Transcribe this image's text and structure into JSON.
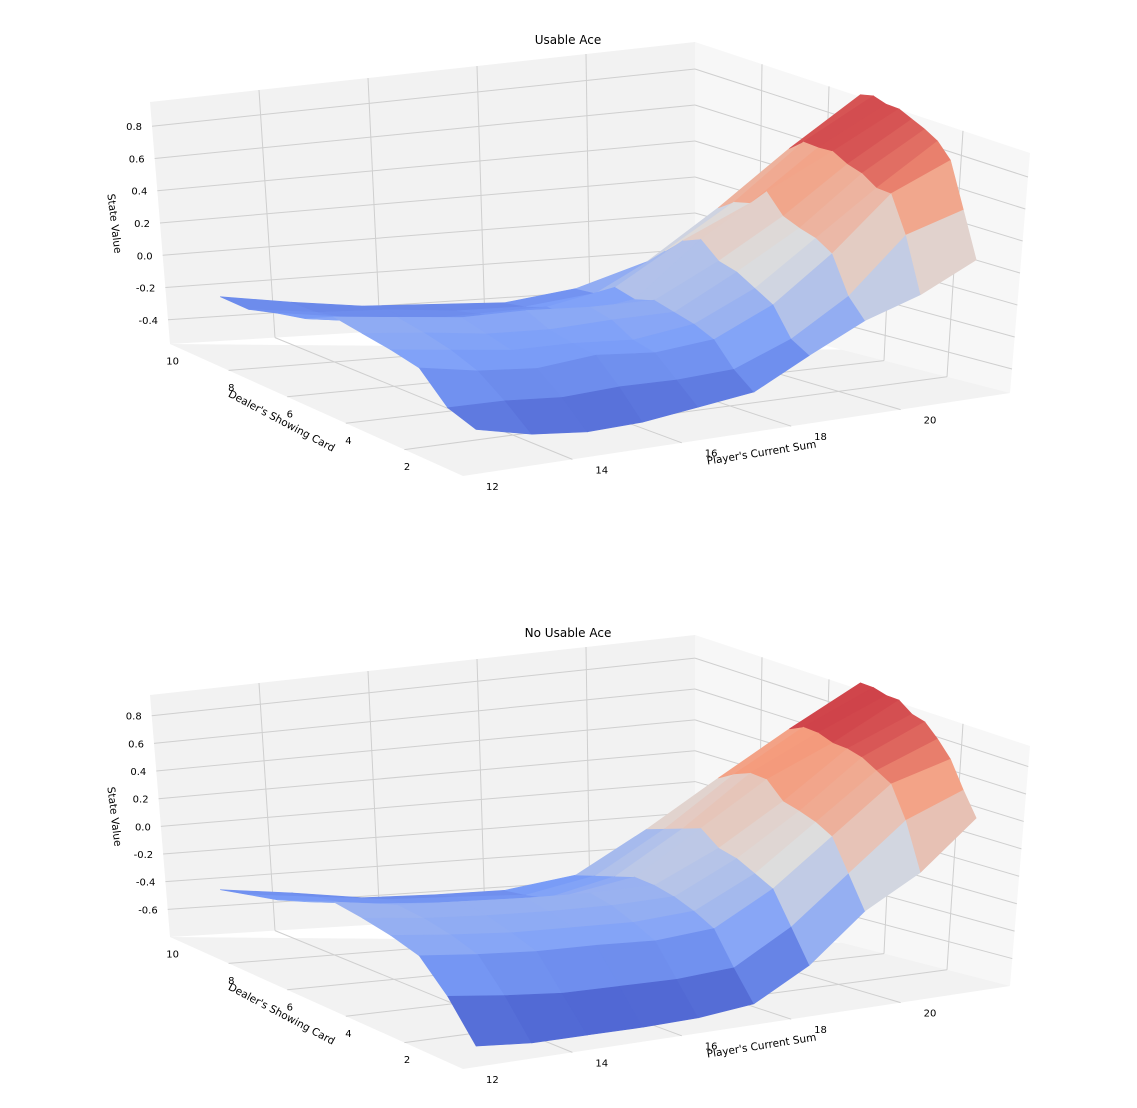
{
  "chart_data": [
    {
      "type": "surface3d",
      "title": "Usable Ace",
      "xlabel": "Player's Current Sum",
      "ylabel": "Dealer's Showing Card",
      "zlabel": "State Value",
      "xticks": [
        "12",
        "14",
        "16",
        "18",
        "20"
      ],
      "yticks": [
        "2",
        "4",
        "6",
        "8",
        "10"
      ],
      "zticks": [
        "-0.4",
        "-0.2",
        "0.0",
        "0.2",
        "0.4",
        "0.6",
        "0.8"
      ],
      "x": [
        12,
        13,
        14,
        15,
        16,
        17,
        18,
        19,
        20,
        21
      ],
      "y": [
        1,
        2,
        3,
        4,
        5,
        6,
        7,
        8,
        9,
        10
      ],
      "zlim": [
        -0.55,
        0.95
      ],
      "colormap": "coolwarm",
      "z": [
        [
          -0.35,
          -0.42,
          -0.45,
          -0.44,
          -0.4,
          -0.36,
          -0.2,
          -0.05,
          0.05,
          0.2
        ],
        [
          -0.3,
          -0.3,
          -0.32,
          -0.3,
          -0.3,
          -0.28,
          -0.15,
          0.05,
          0.35,
          0.45
        ],
        [
          -0.15,
          -0.2,
          -0.22,
          -0.18,
          -0.2,
          -0.16,
          0.0,
          0.25,
          0.55,
          0.7
        ],
        [
          -0.12,
          -0.15,
          -0.18,
          -0.17,
          -0.18,
          -0.12,
          0.05,
          0.3,
          0.55,
          0.78
        ],
        [
          -0.1,
          -0.12,
          -0.15,
          -0.15,
          -0.12,
          -0.1,
          0.1,
          0.32,
          0.6,
          0.82
        ],
        [
          -0.08,
          -0.1,
          -0.12,
          -0.1,
          -0.1,
          -0.08,
          0.12,
          0.35,
          0.62,
          0.85
        ],
        [
          -0.16,
          -0.19,
          -0.23,
          -0.21,
          -0.2,
          -0.12,
          0.2,
          0.45,
          0.66,
          0.88
        ],
        [
          -0.2,
          -0.23,
          -0.26,
          -0.23,
          -0.2,
          -0.1,
          0.15,
          0.35,
          0.65,
          0.88
        ],
        [
          -0.25,
          -0.27,
          -0.26,
          -0.27,
          -0.25,
          -0.18,
          0.05,
          0.32,
          0.65,
          0.9
        ],
        [
          -0.25,
          -0.28,
          -0.3,
          -0.29,
          -0.28,
          -0.2,
          -0.05,
          0.25,
          0.58,
          0.88
        ]
      ]
    },
    {
      "type": "surface3d",
      "title": "No Usable Ace",
      "xlabel": "Player's Current Sum",
      "ylabel": "Dealer's Showing Card",
      "zlabel": "State Value",
      "xticks": [
        "12",
        "14",
        "16",
        "18",
        "20"
      ],
      "yticks": [
        "2",
        "4",
        "6",
        "8",
        "10"
      ],
      "zticks": [
        "-0.6",
        "-0.4",
        "-0.2",
        "0.0",
        "0.2",
        "0.4",
        "0.6",
        "0.8"
      ],
      "x": [
        12,
        13,
        14,
        15,
        16,
        17,
        18,
        19,
        20,
        21
      ],
      "y": [
        1,
        2,
        3,
        4,
        5,
        6,
        7,
        8,
        9,
        10
      ],
      "zlim": [
        -0.8,
        0.95
      ],
      "colormap": "coolwarm",
      "z": [
        [
          -0.72,
          -0.75,
          -0.75,
          -0.75,
          -0.74,
          -0.7,
          -0.5,
          -0.2,
          0.0,
          0.3
        ],
        [
          -0.48,
          -0.52,
          -0.55,
          -0.55,
          -0.55,
          -0.52,
          -0.3,
          0.0,
          0.3,
          0.45
        ],
        [
          -0.3,
          -0.33,
          -0.35,
          -0.35,
          -0.36,
          -0.32,
          -0.1,
          0.2,
          0.5,
          0.62
        ],
        [
          -0.25,
          -0.28,
          -0.3,
          -0.3,
          -0.3,
          -0.26,
          -0.05,
          0.25,
          0.55,
          0.72
        ],
        [
          -0.22,
          -0.25,
          -0.26,
          -0.26,
          -0.25,
          -0.22,
          0.0,
          0.28,
          0.6,
          0.8
        ],
        [
          -0.2,
          -0.24,
          -0.24,
          -0.24,
          -0.23,
          -0.2,
          0.02,
          0.3,
          0.62,
          0.82
        ],
        [
          -0.28,
          -0.31,
          -0.32,
          -0.32,
          -0.3,
          -0.2,
          0.1,
          0.4,
          0.62,
          0.88
        ],
        [
          -0.35,
          -0.38,
          -0.4,
          -0.4,
          -0.38,
          -0.25,
          0.05,
          0.4,
          0.65,
          0.88
        ],
        [
          -0.4,
          -0.42,
          -0.44,
          -0.43,
          -0.42,
          -0.3,
          0.0,
          0.35,
          0.65,
          0.9
        ],
        [
          -0.45,
          -0.47,
          -0.5,
          -0.48,
          -0.45,
          -0.35,
          -0.05,
          0.28,
          0.6,
          0.9
        ]
      ]
    }
  ]
}
